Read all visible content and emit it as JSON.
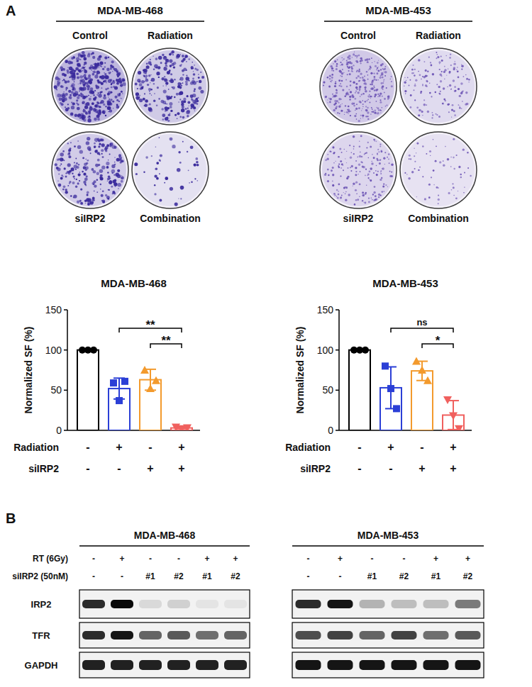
{
  "panel_labels": [
    "A",
    "B"
  ],
  "colony_panels": [
    {
      "title": "MDA-MB-468",
      "color": "#3a2a9c",
      "dishes": [
        {
          "label": "Control",
          "density": 0.95
        },
        {
          "label": "Radiation",
          "density": 0.55
        },
        {
          "label": "siIRP2",
          "density": 0.5
        },
        {
          "label": "Combination",
          "density": 0.1
        }
      ]
    },
    {
      "title": "MDA-MB-453",
      "color": "#6d55b5",
      "dishes": [
        {
          "label": "Control",
          "density": 0.8
        },
        {
          "label": "Radiation",
          "density": 0.35
        },
        {
          "label": "siIRP2",
          "density": 0.45
        },
        {
          "label": "Combination",
          "density": 0.15
        }
      ]
    }
  ],
  "chart_data": [
    {
      "type": "bar",
      "title": "MDA-MB-468",
      "y_label": "Normalized SF (%)",
      "categories": [
        null,
        null,
        null,
        null
      ],
      "ylim": [
        0,
        150
      ],
      "yticks": [
        0,
        50,
        100,
        150
      ],
      "grid": false,
      "condition_table": {
        "rows": [
          {
            "label": "Radiation",
            "values": [
              "-",
              "+",
              "-",
              "+"
            ]
          },
          {
            "label": "siIRP2",
            "values": [
              "-",
              "-",
              "+",
              "+"
            ]
          }
        ]
      },
      "series": [
        {
          "values": [
            100,
            52,
            63,
            3
          ],
          "errors": [
            0,
            13,
            13,
            1
          ],
          "points": [
            [
              100,
              100,
              100
            ],
            [
              59,
              37,
              61
            ],
            [
              75,
              52,
              62
            ],
            [
              4,
              2,
              3
            ]
          ],
          "colors": [
            "#000000",
            "#2b3fd6",
            "#f39a2d",
            "#f0605e"
          ],
          "markers": [
            "circle",
            "square",
            "triangle",
            "triangle-down"
          ]
        }
      ],
      "annotations": [
        {
          "from": 1,
          "to": 3,
          "text": "**"
        },
        {
          "from": 2,
          "to": 3,
          "text": "**"
        }
      ]
    },
    {
      "type": "bar",
      "title": "MDA-MB-453",
      "y_label": "Normalized SF (%)",
      "categories": [
        null,
        null,
        null,
        null
      ],
      "ylim": [
        0,
        150
      ],
      "yticks": [
        0,
        50,
        100,
        150
      ],
      "grid": false,
      "condition_table": {
        "rows": [
          {
            "label": "Radiation",
            "values": [
              "-",
              "+",
              "-",
              "+"
            ]
          },
          {
            "label": "siIRP2",
            "values": [
              "-",
              "-",
              "+",
              "+"
            ]
          }
        ]
      },
      "series": [
        {
          "values": [
            100,
            53,
            74,
            19
          ],
          "errors": [
            0,
            26,
            12,
            18
          ],
          "points": [
            [
              100,
              100,
              100
            ],
            [
              80,
              52,
              27
            ],
            [
              86,
              75,
              62
            ],
            [
              38,
              18,
              2
            ]
          ],
          "colors": [
            "#000000",
            "#2b3fd6",
            "#f39a2d",
            "#f0605e"
          ],
          "markers": [
            "circle",
            "square",
            "triangle",
            "triangle-down"
          ]
        }
      ],
      "annotations": [
        {
          "from": 1,
          "to": 3,
          "text": "ns"
        },
        {
          "from": 2,
          "to": 3,
          "text": "*"
        }
      ]
    }
  ],
  "blot": {
    "row_labels": [
      "RT (6Gy)",
      "siIRP2 (50nM)"
    ],
    "band_labels": [
      "IRP2",
      "TFR",
      "GAPDH"
    ],
    "panels": [
      {
        "title": "MDA-MB-468",
        "conditions": [
          [
            "-",
            "+",
            "-",
            "-",
            "+",
            "+"
          ],
          [
            "-",
            "-",
            "#1",
            "#2",
            "#1",
            "#2"
          ]
        ],
        "intensities": [
          [
            0.85,
            1.0,
            0.08,
            0.12,
            0.03,
            0.03
          ],
          [
            0.85,
            0.95,
            0.6,
            0.65,
            0.55,
            0.6
          ],
          [
            0.9,
            0.9,
            0.9,
            0.9,
            0.9,
            0.9
          ]
        ]
      },
      {
        "title": "MDA-MB-453",
        "conditions": [
          [
            "-",
            "+",
            "-",
            "-",
            "+",
            "+"
          ],
          [
            "-",
            "-",
            "#1",
            "#2",
            "#1",
            "#2"
          ]
        ],
        "intensities": [
          [
            0.85,
            0.95,
            0.25,
            0.2,
            0.2,
            0.5
          ],
          [
            0.7,
            0.75,
            0.6,
            0.75,
            0.55,
            0.65
          ],
          [
            0.95,
            0.95,
            0.95,
            0.95,
            0.95,
            0.95
          ]
        ]
      }
    ]
  }
}
